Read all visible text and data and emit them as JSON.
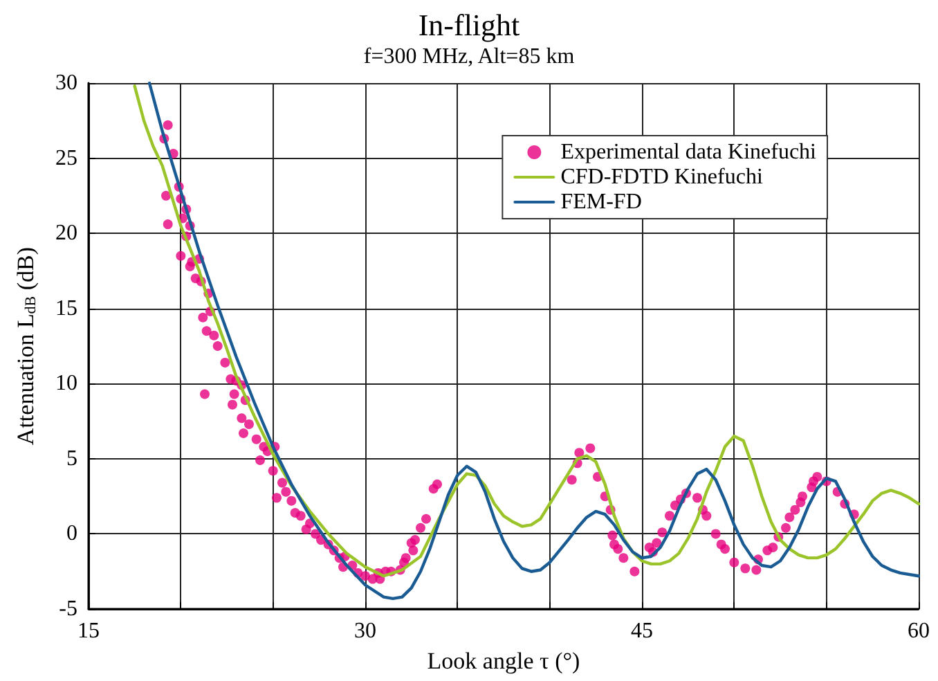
{
  "chart_data": {
    "type": "line",
    "title": "In-flight",
    "subtitle": "f=300 MHz, Alt=85 km",
    "xlabel": "Look angle τ (°)",
    "ylabel": "Attenuation L$_{dB}$ (dB)",
    "xlim": [
      15,
      60
    ],
    "xticks": [
      15,
      {
        "value": 20,
        "label": null
      },
      {
        "value": 25,
        "label": null
      },
      30,
      {
        "value": 35,
        "label": null
      },
      {
        "value": 40,
        "label": null
      },
      45,
      {
        "value": 50,
        "label": null
      },
      {
        "value": 55,
        "label": null
      },
      60
    ],
    "ylim": [
      -5,
      30
    ],
    "yticks": [
      -5,
      0,
      5,
      10,
      15,
      20,
      25,
      30
    ],
    "grid": true,
    "legend": "top right",
    "series": [
      {
        "name": "Experimental data Kinefuchi",
        "type": "scatter",
        "marker": "circle",
        "color": "#e6007e",
        "x": [
          19.3,
          19.1,
          19.6,
          19.2,
          19.3,
          19.9,
          20.0,
          20.3,
          20.5,
          20.1,
          20.3,
          20.0,
          20.5,
          20.8,
          20.6,
          21.0,
          21.1,
          21.5,
          21.6,
          21.2,
          21.4,
          21.8,
          22.0,
          22.4,
          22.7,
          21.3,
          23.0,
          22.9,
          22.8,
          23.3,
          23.5,
          23.3,
          23.7,
          23.4,
          24.1,
          24.5,
          24.7,
          25.1,
          24.3,
          25.0,
          25.5,
          25.2,
          25.7,
          26.0,
          26.2,
          26.5,
          27.0,
          26.8,
          27.3,
          27.6,
          28.0,
          28.3,
          28.6,
          28.9,
          28.8,
          29.3,
          29.6,
          30.0,
          30.4,
          30.8,
          30.7,
          31.1,
          31.4,
          31.9,
          32.2,
          32.6,
          32.1,
          32.5,
          32.7,
          33.0,
          33.3,
          33.7,
          33.9,
          41.2,
          41.5,
          41.6,
          42.2,
          42.6,
          43.0,
          43.3,
          43.4,
          43.5,
          43.7,
          44.0,
          44.6,
          45.4,
          45.6,
          45.8,
          46.1,
          46.5,
          46.8,
          47.1,
          47.4,
          48.0,
          48.3,
          48.5,
          49.0,
          49.3,
          49.5,
          50.0,
          50.6,
          51.2,
          51.3,
          51.8,
          52.1,
          52.4,
          52.8,
          53.0,
          53.3,
          53.6,
          53.7,
          54.2,
          54.3,
          54.5,
          55.0,
          55.6,
          56.0,
          56.5
        ],
        "values": [
          27.2,
          26.3,
          25.3,
          22.5,
          20.6,
          23.1,
          22.3,
          21.6,
          20.5,
          21.0,
          19.8,
          18.5,
          17.8,
          17.0,
          18.1,
          18.3,
          16.8,
          16.0,
          14.8,
          14.4,
          13.5,
          13.2,
          12.5,
          11.4,
          10.3,
          9.3,
          10.2,
          9.3,
          8.6,
          9.9,
          8.9,
          7.7,
          7.3,
          6.7,
          6.3,
          5.8,
          5.5,
          5.8,
          4.9,
          4.2,
          3.4,
          2.4,
          2.8,
          2.2,
          1.4,
          1.2,
          0.7,
          0.3,
          0.0,
          -0.4,
          -0.7,
          -1.1,
          -1.6,
          -1.5,
          -2.2,
          -2.1,
          -2.6,
          -2.8,
          -3.0,
          -3.0,
          -2.6,
          -2.5,
          -2.5,
          -2.4,
          -1.6,
          -1.1,
          -1.9,
          -0.6,
          -0.4,
          0.4,
          1.0,
          3.0,
          3.3,
          3.6,
          4.7,
          5.4,
          5.7,
          3.8,
          2.5,
          1.6,
          -0.1,
          -0.7,
          -1.0,
          -1.6,
          -2.5,
          -0.9,
          -1.2,
          -0.6,
          0.1,
          1.2,
          1.9,
          2.3,
          2.7,
          2.4,
          1.6,
          1.2,
          0.0,
          -0.7,
          -1.0,
          -1.9,
          -2.3,
          -2.4,
          -1.7,
          -1.1,
          -0.9,
          -0.2,
          0.4,
          1.1,
          1.6,
          2.1,
          2.5,
          3.1,
          3.5,
          3.8,
          3.5,
          2.8,
          2.0,
          1.3
        ]
      },
      {
        "name": "CFD-FDTD Kinefuchi",
        "type": "line",
        "color": "#9bc42a",
        "x": [
          17.5,
          18,
          18.5,
          19,
          19.5,
          20,
          20.5,
          21,
          21.5,
          22,
          22.5,
          23,
          24,
          25,
          26,
          27,
          28,
          29,
          30,
          31,
          32,
          33,
          34,
          35,
          35.5,
          36,
          36.5,
          37,
          37.5,
          38,
          38.5,
          39,
          39.5,
          40,
          41,
          41.5,
          42,
          42.5,
          43,
          43.5,
          44,
          44.5,
          45,
          45.5,
          46,
          46.5,
          47,
          47.5,
          48,
          48.5,
          49,
          49.5,
          50,
          50.5,
          51,
          51.5,
          52,
          52.5,
          53,
          53.5,
          54,
          54.5,
          55,
          55.5,
          56,
          56.5,
          57,
          57.5,
          58,
          58.5,
          59,
          59.5,
          60
        ],
        "values": [
          29.8,
          27.5,
          25.8,
          24.5,
          22.5,
          20.5,
          19.0,
          17.5,
          15.5,
          14.0,
          12.3,
          10.5,
          7.8,
          5.3,
          3.2,
          1.5,
          0,
          -1.3,
          -2.2,
          -2.8,
          -2.4,
          -1.5,
          1.0,
          3.3,
          4.0,
          3.9,
          3.2,
          2.0,
          1.2,
          0.8,
          0.5,
          0.6,
          1.0,
          2.0,
          4.0,
          5.0,
          5.2,
          4.8,
          3.3,
          1.2,
          -0.3,
          -1.2,
          -1.8,
          -2.0,
          -2.0,
          -1.8,
          -1.3,
          -0.3,
          1.0,
          2.8,
          4.2,
          5.8,
          6.5,
          6.2,
          4.5,
          2.5,
          0.8,
          -0.4,
          -1.0,
          -1.4,
          -1.6,
          -1.6,
          -1.4,
          -1.0,
          -0.3,
          0.5,
          1.3,
          2.2,
          2.7,
          2.9,
          2.7,
          2.4,
          2.0
        ]
      },
      {
        "name": "FEM-FD",
        "type": "line",
        "color": "#1a5b94",
        "x": [
          18.3,
          19,
          20,
          21,
          22,
          23,
          24,
          25,
          26,
          27,
          28,
          29,
          30,
          31,
          31.5,
          32,
          32.5,
          33,
          33.5,
          34,
          34.5,
          35,
          35.5,
          36,
          36.5,
          37,
          37.5,
          38,
          38.5,
          39,
          39.5,
          40,
          41,
          41.5,
          42,
          42.5,
          43,
          43.5,
          44,
          44.5,
          45,
          45.5,
          46,
          46.5,
          47,
          47.5,
          48,
          48.5,
          49,
          49.5,
          50,
          50.5,
          51,
          51.5,
          52,
          52.5,
          53,
          53.5,
          54,
          54.5,
          55,
          55.5,
          56,
          56.5,
          57,
          57.5,
          58,
          58.5,
          59,
          60
        ],
        "values": [
          30,
          26.8,
          22.8,
          18.8,
          15.2,
          11.8,
          8.7,
          5.8,
          3.3,
          1.2,
          -0.6,
          -2.1,
          -3.4,
          -4.2,
          -4.3,
          -4.2,
          -3.6,
          -2.5,
          -1.0,
          0.8,
          2.6,
          3.9,
          4.5,
          4.1,
          2.8,
          1.0,
          -0.5,
          -1.6,
          -2.3,
          -2.5,
          -2.4,
          -1.9,
          -0.4,
          0.4,
          1.1,
          1.5,
          1.3,
          0.6,
          -0.4,
          -1.2,
          -1.6,
          -1.5,
          -0.9,
          0.2,
          1.7,
          3.0,
          4.0,
          4.3,
          3.6,
          2.2,
          0.6,
          -0.7,
          -1.6,
          -2.1,
          -2.2,
          -1.8,
          -0.9,
          0.3,
          1.8,
          3.0,
          3.7,
          3.5,
          2.3,
          0.8,
          -0.5,
          -1.5,
          -2.1,
          -2.4,
          -2.6,
          -2.8
        ]
      }
    ]
  }
}
